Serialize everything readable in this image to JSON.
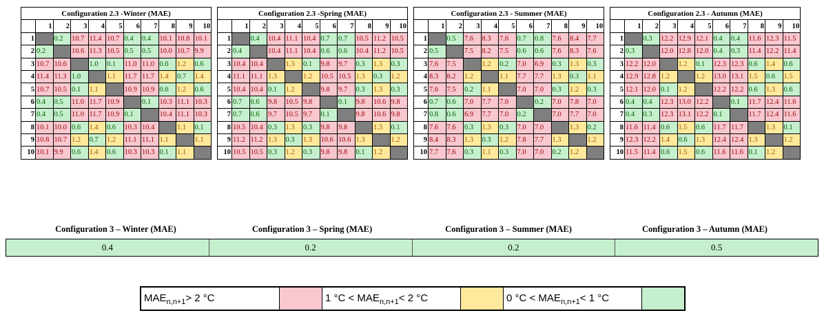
{
  "tables": [
    {
      "title": "Configuration 2.3 -Winter (MAE)",
      "columns": [
        "1",
        "2",
        "3",
        "4",
        "5",
        "6",
        "7",
        "8",
        "9",
        "10"
      ],
      "rows": [
        {
          "label": "1",
          "cells": [
            null,
            "0.2",
            "10.7",
            "11.4",
            "10.7",
            "0.4",
            "0.4",
            "10.1",
            "10.8",
            "10.1"
          ]
        },
        {
          "label": "2",
          "cells": [
            "0.2",
            null,
            "10.6",
            "11.3",
            "10.5",
            "0.5",
            "0.5",
            "10.0",
            "10.7",
            "9.9"
          ]
        },
        {
          "label": "3",
          "cells": [
            "10.7",
            "10.6",
            null,
            "1.0",
            "0.1",
            "11.0",
            "11.0",
            "0.6",
            "1.2",
            "0.6"
          ]
        },
        {
          "label": "4",
          "cells": [
            "11.4",
            "11.3",
            "1.0",
            null,
            "1.1",
            "11.7",
            "11.7",
            "1.4",
            "0.7",
            "1.4"
          ]
        },
        {
          "label": "5",
          "cells": [
            "10.7",
            "10.5",
            "0.1",
            "1.1",
            null,
            "10.9",
            "10.9",
            "0.6",
            "1.2",
            "0.6"
          ]
        },
        {
          "label": "6",
          "cells": [
            "0.4",
            "0.5",
            "11.0",
            "11.7",
            "10.9",
            null,
            "0.1",
            "10.3",
            "11.1",
            "10.3"
          ]
        },
        {
          "label": "7",
          "cells": [
            "0.4",
            "0.5",
            "11.0",
            "11.7",
            "10.9",
            "0.1",
            null,
            "10.4",
            "11.1",
            "10.3"
          ]
        },
        {
          "label": "8",
          "cells": [
            "10.1",
            "10.0",
            "0.6",
            "1.4",
            "0.6",
            "10.3",
            "10.4",
            null,
            "1.1",
            "0.1"
          ]
        },
        {
          "label": "9",
          "cells": [
            "10.8",
            "10.7",
            "1.2",
            "0.7",
            "1.2",
            "11.1",
            "11.1",
            "1.1",
            null,
            "1.1"
          ]
        },
        {
          "label": "10",
          "cells": [
            "10.1",
            "9.9",
            "0.6",
            "1.4",
            "0.6",
            "10.3",
            "10.3",
            "0.1",
            "1.1",
            null
          ]
        }
      ]
    },
    {
      "title": "Configuration 2.3 -Spring (MAE)",
      "columns": [
        "1",
        "2",
        "3",
        "4",
        "5",
        "6",
        "7",
        "8",
        "9",
        "10"
      ],
      "rows": [
        {
          "label": "1",
          "cells": [
            null,
            "0.4",
            "10.4",
            "11.1",
            "10.4",
            "0.7",
            "0.7",
            "10.5",
            "11.2",
            "10.5"
          ]
        },
        {
          "label": "2",
          "cells": [
            "0.4",
            null,
            "10.4",
            "11.1",
            "10.4",
            "0.6",
            "0.6",
            "10.4",
            "11.2",
            "10.5"
          ]
        },
        {
          "label": "3",
          "cells": [
            "10.4",
            "10.4",
            null,
            "1.3",
            "0.1",
            "9.8",
            "9.7",
            "0.3",
            "1.3",
            "0.3"
          ]
        },
        {
          "label": "4",
          "cells": [
            "11.1",
            "11.1",
            "1.3",
            null,
            "1.2",
            "10.5",
            "10.5",
            "1.3",
            "0.3",
            "1.2"
          ]
        },
        {
          "label": "5",
          "cells": [
            "10.4",
            "10.4",
            "0.1",
            "1.2",
            null,
            "9.8",
            "9.7",
            "0.3",
            "1.3",
            "0.3"
          ]
        },
        {
          "label": "6",
          "cells": [
            "0.7",
            "0.6",
            "9.8",
            "10.5",
            "9.8",
            null,
            "0.1",
            "9.8",
            "10.6",
            "9.8"
          ]
        },
        {
          "label": "7",
          "cells": [
            "0.7",
            "0.6",
            "9.7",
            "10.5",
            "9.7",
            "0.1",
            null,
            "9.8",
            "10.6",
            "9.8"
          ]
        },
        {
          "label": "8",
          "cells": [
            "10.5",
            "10.4",
            "0.3",
            "1.3",
            "0.3",
            "9.8",
            "9.8",
            null,
            "1.3",
            "0.1"
          ]
        },
        {
          "label": "9",
          "cells": [
            "11.2",
            "11.2",
            "1.3",
            "0.3",
            "1.3",
            "10.6",
            "10.6",
            "1.3",
            null,
            "1.2"
          ]
        },
        {
          "label": "10",
          "cells": [
            "10.5",
            "10.5",
            "0.3",
            "1.2",
            "0.3",
            "9.8",
            "9.8",
            "0.1",
            "1.2",
            null
          ]
        }
      ]
    },
    {
      "title": "Configuration 2.3 - Summer (MAE)",
      "columns": [
        "1",
        "2",
        "3",
        "4",
        "5",
        "6",
        "7",
        "8",
        "9",
        "10"
      ],
      "rows": [
        {
          "label": "1",
          "cells": [
            null,
            "0.5",
            "7.6",
            "8.3",
            "7.6",
            "0.7",
            "0.8",
            "7.6",
            "8.4",
            "7.7"
          ]
        },
        {
          "label": "2",
          "cells": [
            "0.5",
            null,
            "7.5",
            "8.2",
            "7.5",
            "0.6",
            "0.6",
            "7.6",
            "8.3",
            "7.6"
          ]
        },
        {
          "label": "3",
          "cells": [
            "7.6",
            "7.5",
            null,
            "1.2",
            "0.2",
            "7.0",
            "6.9",
            "0.3",
            "1.3",
            "0.3"
          ]
        },
        {
          "label": "4",
          "cells": [
            "8.3",
            "8.2",
            "1.2",
            null,
            "1.1",
            "7.7",
            "7.7",
            "1.3",
            "0.3",
            "1.1"
          ]
        },
        {
          "label": "5",
          "cells": [
            "7.6",
            "7.5",
            "0.2",
            "1.1",
            null,
            "7.0",
            "7.0",
            "0.3",
            "1.2",
            "0.3"
          ]
        },
        {
          "label": "6",
          "cells": [
            "0.7",
            "0.6",
            "7.0",
            "7.7",
            "7.0",
            null,
            "0.2",
            "7.0",
            "7.8",
            "7.0"
          ]
        },
        {
          "label": "7",
          "cells": [
            "0.8",
            "0.6",
            "6.9",
            "7.7",
            "7.0",
            "0.2",
            null,
            "7.0",
            "7.7",
            "7.0"
          ]
        },
        {
          "label": "8",
          "cells": [
            "7.6",
            "7.6",
            "0.3",
            "1.3",
            "0.3",
            "7.0",
            "7.0",
            null,
            "1.3",
            "0.2"
          ]
        },
        {
          "label": "9",
          "cells": [
            "8.4",
            "8.3",
            "1.3",
            "0.3",
            "1.2",
            "7.8",
            "7.7",
            "1.3",
            null,
            "1.2"
          ]
        },
        {
          "label": "10",
          "cells": [
            "7.7",
            "7.6",
            "0.3",
            "1.1",
            "0.3",
            "7.0",
            "7.0",
            "0.2",
            "1.2",
            null
          ]
        }
      ]
    },
    {
      "title": "Configuration 2.3 - Autumn (MAE)",
      "columns": [
        "1",
        "2",
        "3",
        "4",
        "5",
        "6",
        "7",
        "8",
        "9",
        "10"
      ],
      "rows": [
        {
          "label": "1",
          "cells": [
            null,
            "0.3",
            "12.2",
            "12.9",
            "12.1",
            "0.4",
            "0.4",
            "11.6",
            "12.3",
            "11.5"
          ]
        },
        {
          "label": "2",
          "cells": [
            "0.3",
            null,
            "12.0",
            "12.8",
            "12.0",
            "0.4",
            "0.3",
            "11.4",
            "12.2",
            "11.4"
          ]
        },
        {
          "label": "3",
          "cells": [
            "12.2",
            "12.0",
            null,
            "1.2",
            "0.1",
            "12.3",
            "12.3",
            "0.6",
            "1.4",
            "0.6"
          ]
        },
        {
          "label": "4",
          "cells": [
            "12.9",
            "12.8",
            "1.2",
            null,
            "1.2",
            "13.0",
            "13.1",
            "1.5",
            "0.6",
            "1.5"
          ]
        },
        {
          "label": "5",
          "cells": [
            "12.1",
            "12.0",
            "0.1",
            "1.2",
            null,
            "12.2",
            "12.2",
            "0.6",
            "1.3",
            "0.6"
          ]
        },
        {
          "label": "6",
          "cells": [
            "0.4",
            "0.4",
            "12.3",
            "13.0",
            "12.2",
            null,
            "0.1",
            "11.7",
            "12.4",
            "11.6"
          ]
        },
        {
          "label": "7",
          "cells": [
            "0.4",
            "0.3",
            "12.3",
            "13.1",
            "12.2",
            "0.1",
            null,
            "11.7",
            "12.4",
            "11.6"
          ]
        },
        {
          "label": "8",
          "cells": [
            "11.6",
            "11.4",
            "0.6",
            "1.5",
            "0.6",
            "11.7",
            "11.7",
            null,
            "1.3",
            "0.1"
          ]
        },
        {
          "label": "9",
          "cells": [
            "12.3",
            "12.2",
            "1.4",
            "0.6",
            "1.3",
            "12.4",
            "12.4",
            "1.3",
            null,
            "1.2"
          ]
        },
        {
          "label": "10",
          "cells": [
            "11.5",
            "11.4",
            "0.6",
            "1.5",
            "0.6",
            "11.6",
            "11.6",
            "0.1",
            "1.2",
            null
          ]
        }
      ]
    }
  ],
  "config3": {
    "titles": [
      "Configuration 3 – Winter (MAE)",
      "Configuration 3 – Spring (MAE)",
      "Configuration 3 – Summer (MAE)",
      "Configuration 3 – Autumn (MAE)"
    ],
    "values": [
      "0.4",
      "0.2",
      "0.2",
      "0.5"
    ]
  },
  "legend": [
    {
      "text": "MAE",
      "sub": "n,n+1",
      "rest": "> 2 °C",
      "color": "#f8c7cf"
    },
    {
      "text": "1 °C < MAE",
      "sub": "n,n+1",
      "rest": "< 2 °C",
      "color": "#ffe99c"
    },
    {
      "text": "0 °C < MAE",
      "sub": "n,n+1",
      "rest": "< 1 °C",
      "color": "#c6efce"
    }
  ]
}
